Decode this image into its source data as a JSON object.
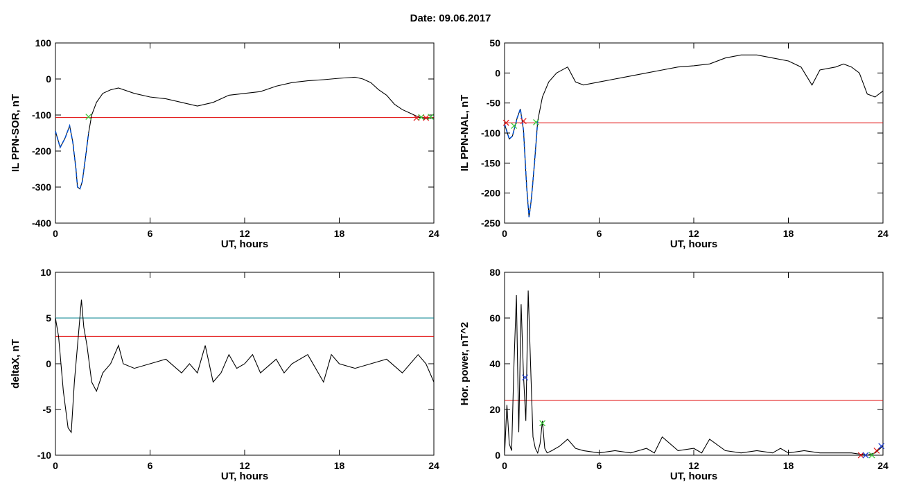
{
  "title": "Date:  09.06.2017",
  "colors": {
    "series": "#000000",
    "threshold_red": "#e00000",
    "threshold_teal": "#00808c",
    "highlight_blue": "#0050d0",
    "marker_green": "#3cc83c",
    "marker_red": "#e02020",
    "marker_blue": "#2040d0"
  },
  "chart_data": [
    {
      "type": "line",
      "xlabel": "UT, hours",
      "ylabel": "IL PPN-SOR, nT",
      "xlim": [
        0,
        24
      ],
      "ylim": [
        -400,
        100
      ],
      "xticks": [
        "0",
        "6",
        "12",
        "18",
        "24"
      ],
      "yticks": [
        "-400",
        "-300",
        "-200",
        "-100",
        "0",
        "100"
      ],
      "threshold_red": -107,
      "series": [
        {
          "x": [
            0,
            0.3,
            0.6,
            0.9,
            1.1,
            1.3,
            1.4,
            1.55,
            1.7,
            1.9,
            2.1,
            2.3,
            2.6,
            3.0,
            3.5,
            4.0,
            5.0,
            6.0,
            7.0,
            8.0,
            9.0,
            10.0,
            11.0,
            12.0,
            13.0,
            14.0,
            15.0,
            16.0,
            17.0,
            18.0,
            19.0,
            19.5,
            20.0,
            20.5,
            21.0,
            21.5,
            22.0,
            22.5,
            23.0,
            23.5,
            24.0
          ],
          "y": [
            -145,
            -190,
            -165,
            -130,
            -175,
            -250,
            -300,
            -305,
            -285,
            -220,
            -150,
            -100,
            -65,
            -40,
            -30,
            -25,
            -40,
            -50,
            -55,
            -65,
            -75,
            -65,
            -45,
            -40,
            -35,
            -20,
            -10,
            -5,
            -2,
            2,
            5,
            0,
            -10,
            -30,
            -45,
            -70,
            -85,
            -95,
            -105,
            -110,
            -108
          ]
        }
      ],
      "highlight_x": [
        0,
        2.2
      ],
      "markers": [
        {
          "x": 2.1,
          "y": -105,
          "color": "green"
        },
        {
          "x": 22.9,
          "y": -108,
          "color": "red"
        },
        {
          "x": 23.2,
          "y": -106,
          "color": "green"
        },
        {
          "x": 23.5,
          "y": -108,
          "color": "red"
        },
        {
          "x": 23.8,
          "y": -105,
          "color": "green"
        }
      ]
    },
    {
      "type": "line",
      "xlabel": "UT, hours",
      "ylabel": "IL PPN-NAL, nT",
      "xlim": [
        0,
        24
      ],
      "ylim": [
        -250,
        50
      ],
      "xticks": [
        "0",
        "6",
        "12",
        "18",
        "24"
      ],
      "yticks": [
        "-250",
        "-200",
        "-150",
        "-100",
        "-50",
        "0",
        "50"
      ],
      "threshold_red": -83,
      "series": [
        {
          "x": [
            0,
            0.3,
            0.5,
            0.8,
            1.0,
            1.2,
            1.4,
            1.55,
            1.7,
            1.9,
            2.1,
            2.4,
            2.8,
            3.3,
            4.0,
            4.5,
            5.0,
            6.0,
            7.0,
            8.0,
            9.0,
            10.0,
            11.0,
            12.0,
            13.0,
            14.0,
            15.0,
            16.0,
            17.0,
            18.0,
            18.8,
            19.5,
            20.0,
            21.0,
            21.5,
            22.0,
            22.5,
            23.0,
            23.5,
            24.0
          ],
          "y": [
            -85,
            -110,
            -105,
            -75,
            -60,
            -95,
            -190,
            -240,
            -210,
            -150,
            -80,
            -40,
            -15,
            0,
            10,
            -15,
            -20,
            -15,
            -10,
            -5,
            0,
            5,
            10,
            12,
            15,
            25,
            30,
            30,
            25,
            20,
            10,
            -20,
            5,
            10,
            15,
            10,
            0,
            -35,
            -40,
            -30
          ]
        }
      ],
      "highlight_x": [
        0,
        2.2
      ],
      "markers": [
        {
          "x": 0.1,
          "y": -83,
          "color": "red"
        },
        {
          "x": 0.6,
          "y": -88,
          "color": "green"
        },
        {
          "x": 1.2,
          "y": -80,
          "color": "red"
        },
        {
          "x": 2.0,
          "y": -82,
          "color": "green"
        }
      ]
    },
    {
      "type": "line",
      "xlabel": "UT, hours",
      "ylabel": "deltaX, nT",
      "xlim": [
        0,
        24
      ],
      "ylim": [
        -10,
        10
      ],
      "xticks": [
        "0",
        "6",
        "12",
        "18",
        "24"
      ],
      "yticks": [
        "-10",
        "-5",
        "0",
        "5",
        "10"
      ],
      "threshold_red": 3,
      "threshold_teal": 5,
      "series": [
        {
          "x": [
            0,
            0.2,
            0.5,
            0.8,
            1.0,
            1.2,
            1.5,
            1.65,
            1.8,
            2.0,
            2.3,
            2.6,
            3.0,
            3.5,
            4.0,
            4.3,
            5.0,
            6.0,
            7.0,
            8.0,
            8.5,
            9.0,
            9.5,
            10.0,
            10.5,
            11.0,
            11.5,
            12.0,
            12.5,
            13.0,
            14.0,
            14.5,
            15.0,
            16.0,
            17.0,
            17.5,
            18.0,
            19.0,
            20.0,
            21.0,
            22.0,
            23.0,
            23.5,
            24.0
          ],
          "y": [
            5,
            3,
            -3,
            -7,
            -7.5,
            -2,
            4,
            7,
            4,
            2,
            -2,
            -3,
            -1,
            0,
            2,
            0,
            -0.5,
            0,
            0.5,
            -1,
            0,
            -1,
            2,
            -2,
            -1,
            1,
            -0.5,
            0,
            1,
            -1,
            0.5,
            -1,
            0,
            1,
            -2,
            1,
            0,
            -0.5,
            0,
            0.5,
            -1,
            1,
            0,
            -2
          ]
        }
      ]
    },
    {
      "type": "line",
      "xlabel": "UT, hours",
      "ylabel": "Hor. power, nT^2",
      "xlim": [
        0,
        24
      ],
      "ylim": [
        0,
        80
      ],
      "xticks": [
        "0",
        "6",
        "12",
        "18",
        "24"
      ],
      "yticks": [
        "0",
        "20",
        "40",
        "60",
        "80"
      ],
      "threshold_red": 24,
      "series": [
        {
          "x": [
            0,
            0.15,
            0.3,
            0.45,
            0.6,
            0.75,
            0.9,
            1.05,
            1.2,
            1.35,
            1.5,
            1.65,
            1.8,
            1.95,
            2.1,
            2.25,
            2.4,
            2.55,
            2.7,
            3.0,
            3.5,
            4.0,
            4.5,
            5.0,
            6.0,
            7.0,
            8.0,
            9.0,
            9.5,
            10.0,
            11.0,
            12.0,
            12.5,
            13.0,
            14.0,
            15.0,
            16.0,
            17.0,
            17.5,
            18.0,
            19.0,
            20.0,
            21.0,
            22.0,
            23.0,
            23.5,
            24.0
          ],
          "y": [
            0,
            22,
            5,
            2,
            40,
            70,
            10,
            66,
            35,
            15,
            72,
            40,
            8,
            3,
            1,
            5,
            15,
            3,
            1,
            2,
            4,
            7,
            3,
            2,
            1,
            2,
            1,
            3,
            1,
            8,
            2,
            3,
            1,
            7,
            2,
            1,
            2,
            1,
            3,
            1,
            2,
            1,
            1,
            1,
            0,
            1,
            4
          ]
        }
      ],
      "markers": [
        {
          "x": 1.3,
          "y": 34,
          "color": "blue"
        },
        {
          "x": 2.4,
          "y": 14,
          "color": "green"
        },
        {
          "x": 22.6,
          "y": 0,
          "color": "red"
        },
        {
          "x": 22.9,
          "y": 0,
          "color": "blue"
        },
        {
          "x": 23.3,
          "y": 0,
          "color": "green"
        },
        {
          "x": 23.6,
          "y": 2,
          "color": "red"
        },
        {
          "x": 23.9,
          "y": 4,
          "color": "blue"
        }
      ]
    }
  ]
}
